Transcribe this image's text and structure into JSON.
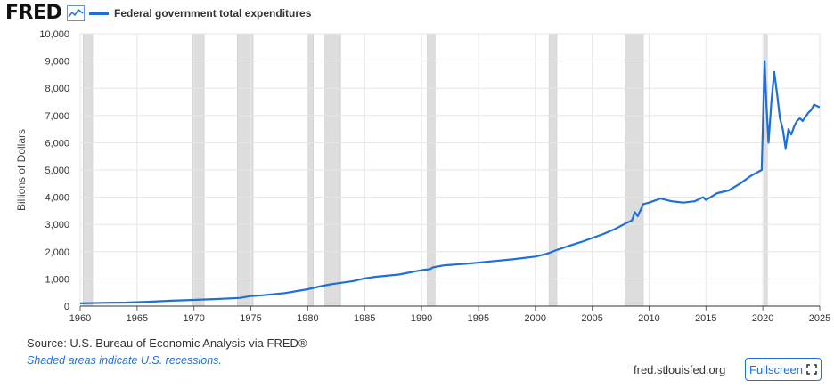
{
  "header": {
    "logo_text": "FRED",
    "logo_icon": "line-chart-icon",
    "legend_label": "Federal government total expenditures",
    "legend_color": "#1f6fd9"
  },
  "footer": {
    "source": "Source: U.S. Bureau of Economic Analysis via FRED®",
    "note": "Shaded areas indicate U.S. recessions.",
    "site": "fred.stlouisfed.org",
    "fullscreen_label": "Fullscreen",
    "fullscreen_icon": "fullscreen-icon"
  },
  "chart_data": {
    "type": "line",
    "ylabel": "Billions of Dollars",
    "xlim": [
      1960,
      2025
    ],
    "ylim": [
      0,
      10000
    ],
    "yticks": [
      0,
      1000,
      2000,
      3000,
      4000,
      5000,
      6000,
      7000,
      8000,
      9000,
      10000
    ],
    "ytick_labels": [
      "0",
      "1,000",
      "2,000",
      "3,000",
      "4,000",
      "5,000",
      "6,000",
      "7,000",
      "8,000",
      "9,000",
      "10,000"
    ],
    "xticks": [
      1960,
      1965,
      1970,
      1975,
      1980,
      1985,
      1990,
      1995,
      2000,
      2005,
      2010,
      2015,
      2020,
      2025
    ],
    "grid": true,
    "line_color": "#1f6fd9",
    "recession_color": "#dddddd",
    "recessions": [
      [
        1960.25,
        1961.1
      ],
      [
        1969.9,
        1970.9
      ],
      [
        1973.8,
        1975.2
      ],
      [
        1980.0,
        1980.5
      ],
      [
        1981.5,
        1982.9
      ],
      [
        1990.5,
        1991.2
      ],
      [
        2001.2,
        2001.9
      ],
      [
        2007.9,
        2009.5
      ],
      [
        2020.1,
        2020.4
      ]
    ],
    "series": [
      {
        "x": [
          1960,
          1962,
          1964,
          1966,
          1968,
          1970,
          1972,
          1974,
          1975,
          1976,
          1978,
          1980,
          1981,
          1982,
          1983,
          1984,
          1985,
          1986,
          1988,
          1990,
          1990.75,
          1991,
          1992,
          1994,
          1996,
          1998,
          2000,
          2001,
          2002,
          2003,
          2004,
          2005,
          2006,
          2007,
          2008,
          2008.5,
          2008.75,
          2009,
          2009.5,
          2010,
          2011,
          2011.5,
          2012,
          2013,
          2014,
          2014.5,
          2014.75,
          2015,
          2016,
          2017,
          2018,
          2019,
          2019.9,
          2020.15,
          2020.3,
          2020.5,
          2020.75,
          2021,
          2021.25,
          2021.5,
          2021.75,
          2022,
          2022.25,
          2022.5,
          2022.75,
          2023,
          2023.25,
          2023.5,
          2023.75,
          2024,
          2024.25,
          2024.5,
          2024.75,
          2025
        ],
        "y": [
          100,
          120,
          130,
          160,
          200,
          230,
          260,
          300,
          370,
          400,
          480,
          620,
          720,
          800,
          860,
          920,
          1020,
          1080,
          1160,
          1320,
          1360,
          1420,
          1500,
          1560,
          1640,
          1720,
          1820,
          1920,
          2080,
          2220,
          2350,
          2500,
          2650,
          2830,
          3050,
          3150,
          3450,
          3300,
          3750,
          3800,
          3950,
          3900,
          3850,
          3800,
          3850,
          3950,
          4000,
          3900,
          4150,
          4250,
          4500,
          4800,
          5000,
          9000,
          7500,
          6000,
          7500,
          8600,
          7800,
          6900,
          6500,
          5800,
          6500,
          6300,
          6600,
          6800,
          6900,
          6800,
          6950,
          7100,
          7200,
          7400,
          7350,
          7300
        ]
      }
    ]
  }
}
